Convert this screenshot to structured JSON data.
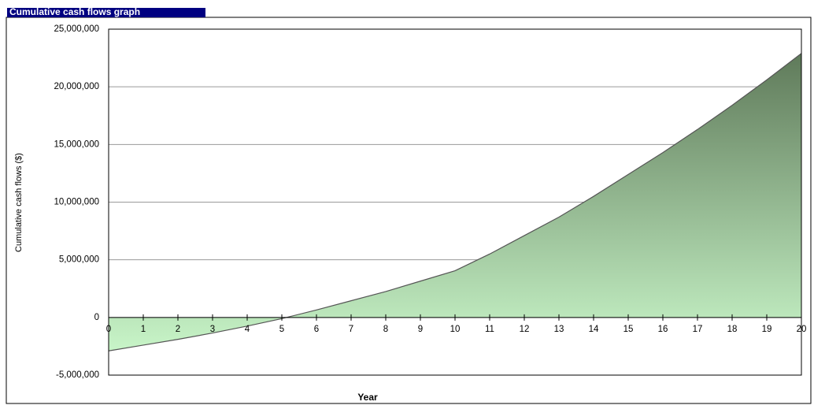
{
  "chart_data": {
    "type": "area",
    "title": "Cumulative cash flows graph",
    "x_label": "Year",
    "y_label": "Cumulative cash flows ($)",
    "x": [
      0,
      1,
      2,
      3,
      4,
      5,
      6,
      7,
      8,
      9,
      10,
      11,
      12,
      13,
      14,
      15,
      16,
      17,
      18,
      19,
      20
    ],
    "values": [
      -2900000,
      -2400000,
      -1900000,
      -1350000,
      -750000,
      -100000,
      650000,
      1450000,
      2250000,
      3150000,
      4050000,
      5500000,
      7100000,
      8700000,
      10500000,
      12400000,
      14300000,
      16300000,
      18400000,
      20600000,
      22900000
    ],
    "color_top": "#5f7a5a",
    "color_bottom": "#c8f5c8",
    "xlim": [
      0,
      20
    ],
    "ylim": [
      -5000000,
      25000000
    ],
    "yticks": [
      {
        "value": -5000000,
        "label": "-5,000,000"
      },
      0,
      {
        "value": 5000000,
        "label": "5,000,000"
      },
      {
        "value": 10000000,
        "label": "10,000,000"
      },
      {
        "value": 15000000,
        "label": "15,000,000"
      },
      {
        "value": 20000000,
        "label": "20,000,000"
      },
      {
        "value": 25000000,
        "label": "25,000,000"
      }
    ],
    "grid": true
  }
}
